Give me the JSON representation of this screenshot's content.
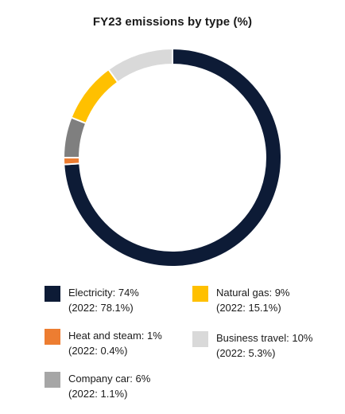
{
  "chart_data": {
    "type": "pie",
    "title": "FY23 emissions by type (%)",
    "categories": [
      "Electricity",
      "Heat and steam",
      "Company car",
      "Natural gas",
      "Business travel"
    ],
    "values": [
      74,
      1,
      6,
      9,
      10
    ],
    "unit": "%",
    "comparison": {
      "values": [
        78.1,
        0.4,
        1.1,
        15.1,
        5.3
      ]
    },
    "colors": [
      "#0d1b36",
      "#ed7d31",
      "#7f7f7f",
      "#ffc000",
      "#d9d9d9"
    ],
    "legend": [
      {
        "label": "Electricity: 74%",
        "sub": "(2022: 78.1%)",
        "color": "#0d1b36"
      },
      {
        "label": "Natural gas: 9%",
        "sub": "(2022: 15.1%)",
        "color": "#ffc000"
      },
      {
        "label": "Heat and steam: 1%",
        "sub": "(2022: 0.4%)",
        "color": "#ed7d31"
      },
      {
        "label": "Business travel: 10%",
        "sub": "(2022: 5.3%)",
        "color": "#d9d9d9"
      },
      {
        "label": "Company car: 6%",
        "sub": "(2022: 1.1%)",
        "color": "#a6a6a6"
      }
    ],
    "legend_position": "bottom"
  }
}
